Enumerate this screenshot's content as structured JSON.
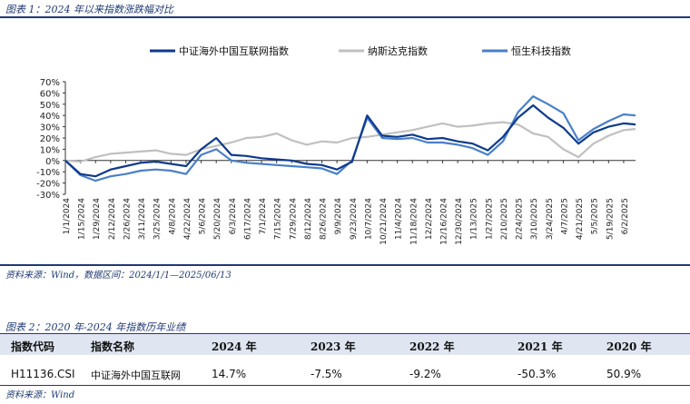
{
  "figure1": {
    "title": "图表 1：2024 年以来指数涨跌幅对比",
    "source": "资料来源：Wind，数据区间：2024/1/1—2025/06/13"
  },
  "chart_data": {
    "type": "line",
    "ylim": [
      -0.3,
      0.7
    ],
    "yticks": [
      "-30%",
      "-20%",
      "-10%",
      "0%",
      "10%",
      "20%",
      "30%",
      "40%",
      "50%",
      "60%",
      "70%"
    ],
    "ytick_values": [
      -0.3,
      -0.2,
      -0.1,
      0,
      0.1,
      0.2,
      0.3,
      0.4,
      0.5,
      0.6,
      0.7
    ],
    "legend_position": "top",
    "grid": false,
    "xticks": [
      "1/1/2024",
      "1/15/2024",
      "1/29/2024",
      "2/12/2024",
      "2/26/2024",
      "3/11/2024",
      "3/25/2024",
      "4/8/2024",
      "4/22/2024",
      "5/6/2024",
      "5/20/2024",
      "6/3/2024",
      "6/17/2024",
      "7/1/2024",
      "7/15/2024",
      "7/29/2024",
      "8/12/2024",
      "8/26/2024",
      "9/9/2024",
      "9/23/2024",
      "10/7/2024",
      "10/21/2024",
      "11/4/2024",
      "11/18/2024",
      "12/2/2024",
      "12/16/2024",
      "12/30/2024",
      "1/13/2025",
      "1/27/2025",
      "2/10/2025",
      "2/24/2025",
      "3/10/2025",
      "3/24/2025",
      "4/7/2025",
      "4/21/2025",
      "5/5/2025",
      "5/19/2025",
      "6/2/2025"
    ],
    "x": [
      "1/1/2024",
      "1/15/2024",
      "1/29/2024",
      "2/12/2024",
      "2/26/2024",
      "3/11/2024",
      "3/25/2024",
      "4/8/2024",
      "4/22/2024",
      "5/6/2024",
      "5/20/2024",
      "6/3/2024",
      "6/17/2024",
      "7/1/2024",
      "7/15/2024",
      "7/29/2024",
      "8/12/2024",
      "8/26/2024",
      "9/9/2024",
      "9/23/2024",
      "10/7/2024",
      "10/21/2024",
      "11/4/2024",
      "11/18/2024",
      "12/2/2024",
      "12/16/2024",
      "12/30/2024",
      "1/13/2025",
      "1/27/2025",
      "2/10/2025",
      "2/24/2025",
      "3/10/2025",
      "3/24/2025",
      "4/7/2025",
      "4/21/2025",
      "5/5/2025",
      "5/19/2025",
      "6/2/2025",
      "6/13/2025"
    ],
    "series": [
      {
        "name": "中证海外中国互联网指数",
        "color": "#0d3a8c",
        "values": [
          0,
          -0.12,
          -0.14,
          -0.08,
          -0.05,
          -0.02,
          -0.01,
          -0.03,
          -0.05,
          0.1,
          0.2,
          0.05,
          0.04,
          0.02,
          0.01,
          0.0,
          -0.03,
          -0.04,
          -0.08,
          -0.01,
          0.4,
          0.22,
          0.21,
          0.23,
          0.19,
          0.2,
          0.17,
          0.15,
          0.09,
          0.21,
          0.38,
          0.49,
          0.38,
          0.29,
          0.15,
          0.25,
          0.3,
          0.33,
          0.32
        ]
      },
      {
        "name": "纳斯达克指数",
        "color": "#c0c0c0",
        "values": [
          0,
          -0.01,
          0.03,
          0.06,
          0.07,
          0.08,
          0.09,
          0.06,
          0.05,
          0.1,
          0.13,
          0.16,
          0.2,
          0.21,
          0.24,
          0.18,
          0.14,
          0.17,
          0.16,
          0.2,
          0.21,
          0.23,
          0.25,
          0.27,
          0.3,
          0.33,
          0.3,
          0.31,
          0.33,
          0.34,
          0.32,
          0.24,
          0.21,
          0.1,
          0.03,
          0.15,
          0.22,
          0.27,
          0.28
        ]
      },
      {
        "name": "恒生科技指数",
        "color": "#4a7fc8",
        "values": [
          0,
          -0.13,
          -0.18,
          -0.14,
          -0.12,
          -0.09,
          -0.08,
          -0.09,
          -0.12,
          0.05,
          0.1,
          0.0,
          -0.02,
          -0.03,
          -0.04,
          -0.05,
          -0.06,
          -0.07,
          -0.12,
          0.0,
          0.38,
          0.2,
          0.19,
          0.2,
          0.16,
          0.16,
          0.14,
          0.11,
          0.05,
          0.17,
          0.43,
          0.57,
          0.5,
          0.42,
          0.18,
          0.28,
          0.35,
          0.41,
          0.4
        ]
      }
    ]
  },
  "figure2": {
    "title": "图表 2：2020 年-2024 年指数历年业绩",
    "columns": [
      "指数代码",
      "指数名称",
      "2024 年",
      "2023 年",
      "2022 年",
      "2021 年",
      "2020 年"
    ],
    "rows": [
      [
        "H11136.CSI",
        "中证海外中国互联网",
        "14.7%",
        "-7.5%",
        "-9.2%",
        "-50.3%",
        "50.9%"
      ]
    ],
    "source": "资料来源：Wind"
  }
}
